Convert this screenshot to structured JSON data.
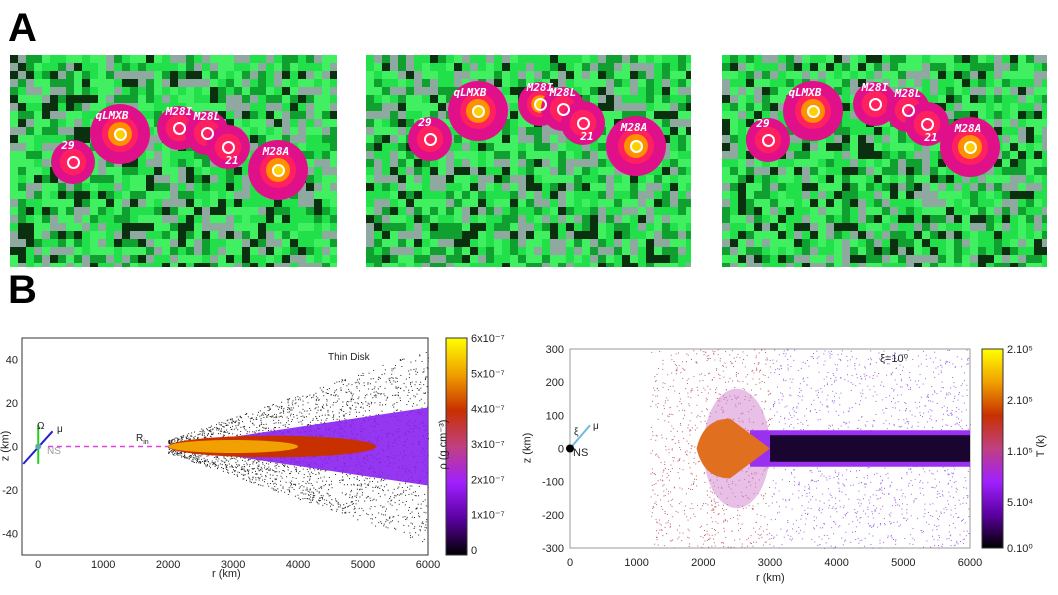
{
  "panel_labels": {
    "a": "A",
    "b": "B"
  },
  "panel_a": {
    "tiles": [
      {
        "sources": [
          {
            "label": "29"
          },
          {
            "label": "qLMXB"
          },
          {
            "label": "M28I"
          },
          {
            "label": "M28L"
          },
          {
            "label": "21"
          },
          {
            "label": "M28A"
          }
        ]
      },
      {
        "sources": [
          {
            "label": "29"
          },
          {
            "label": "qLMXB"
          },
          {
            "label": "M28I"
          },
          {
            "label": "M28L"
          },
          {
            "label": "21"
          },
          {
            "label": "M28A"
          }
        ]
      },
      {
        "sources": [
          {
            "label": "29"
          },
          {
            "label": "qLMXB"
          },
          {
            "label": "M28I"
          },
          {
            "label": "M28L"
          },
          {
            "label": "21"
          },
          {
            "label": "M28A"
          }
        ]
      }
    ]
  },
  "chart_data": [
    {
      "type": "heatmap",
      "title": "Thin Disk",
      "xlabel": "r (km)",
      "ylabel": "z (km)",
      "xlim": [
        -250,
        6000
      ],
      "ylim": [
        -50,
        50
      ],
      "xticks": [
        "0",
        "1000",
        "2000",
        "3000",
        "4000",
        "5000",
        "6000"
      ],
      "yticks": [
        "40",
        "20",
        "0",
        "-20",
        "-40"
      ],
      "colorbar": {
        "label": "ρ (g.cm⁻³)",
        "ticks": [
          "6x10⁻⁷",
          "5x10⁻⁷",
          "4x10⁻⁷",
          "3x10⁻⁷",
          "2x10⁻⁷",
          "1x10⁻⁷",
          "0"
        ],
        "colormap": [
          "#000000",
          "#5a00a0",
          "#a020ff",
          "#c04080",
          "#c83000",
          "#f0a000",
          "#ffff00"
        ]
      },
      "annotations": {
        "omega": "Ω",
        "mu": "μ",
        "ns": "NS",
        "rin": "R",
        "rin_sub": "in"
      },
      "disk_inner_radius_km": 2000
    },
    {
      "type": "heatmap",
      "title": "ξ=10⁰",
      "xlabel": "r (km)",
      "ylabel": "z (km)",
      "xlim": [
        0,
        6000
      ],
      "ylim": [
        -300,
        300
      ],
      "xticks": [
        "0",
        "1000",
        "2000",
        "3000",
        "4000",
        "5000",
        "6000"
      ],
      "yticks": [
        "300",
        "200",
        "100",
        "0",
        "-100",
        "-200",
        "-300"
      ],
      "colorbar": {
        "label": "T (k)",
        "ticks": [
          "2.10⁵",
          "2.10⁵",
          "1.10⁵",
          "5.10⁴",
          "0.10⁰"
        ],
        "colormap": [
          "#000000",
          "#5a00a0",
          "#a020ff",
          "#c04080",
          "#c83000",
          "#f0a000",
          "#ffff00"
        ]
      },
      "annotations": {
        "xi": "ξ",
        "mu": "μ",
        "ns": "NS"
      }
    }
  ]
}
